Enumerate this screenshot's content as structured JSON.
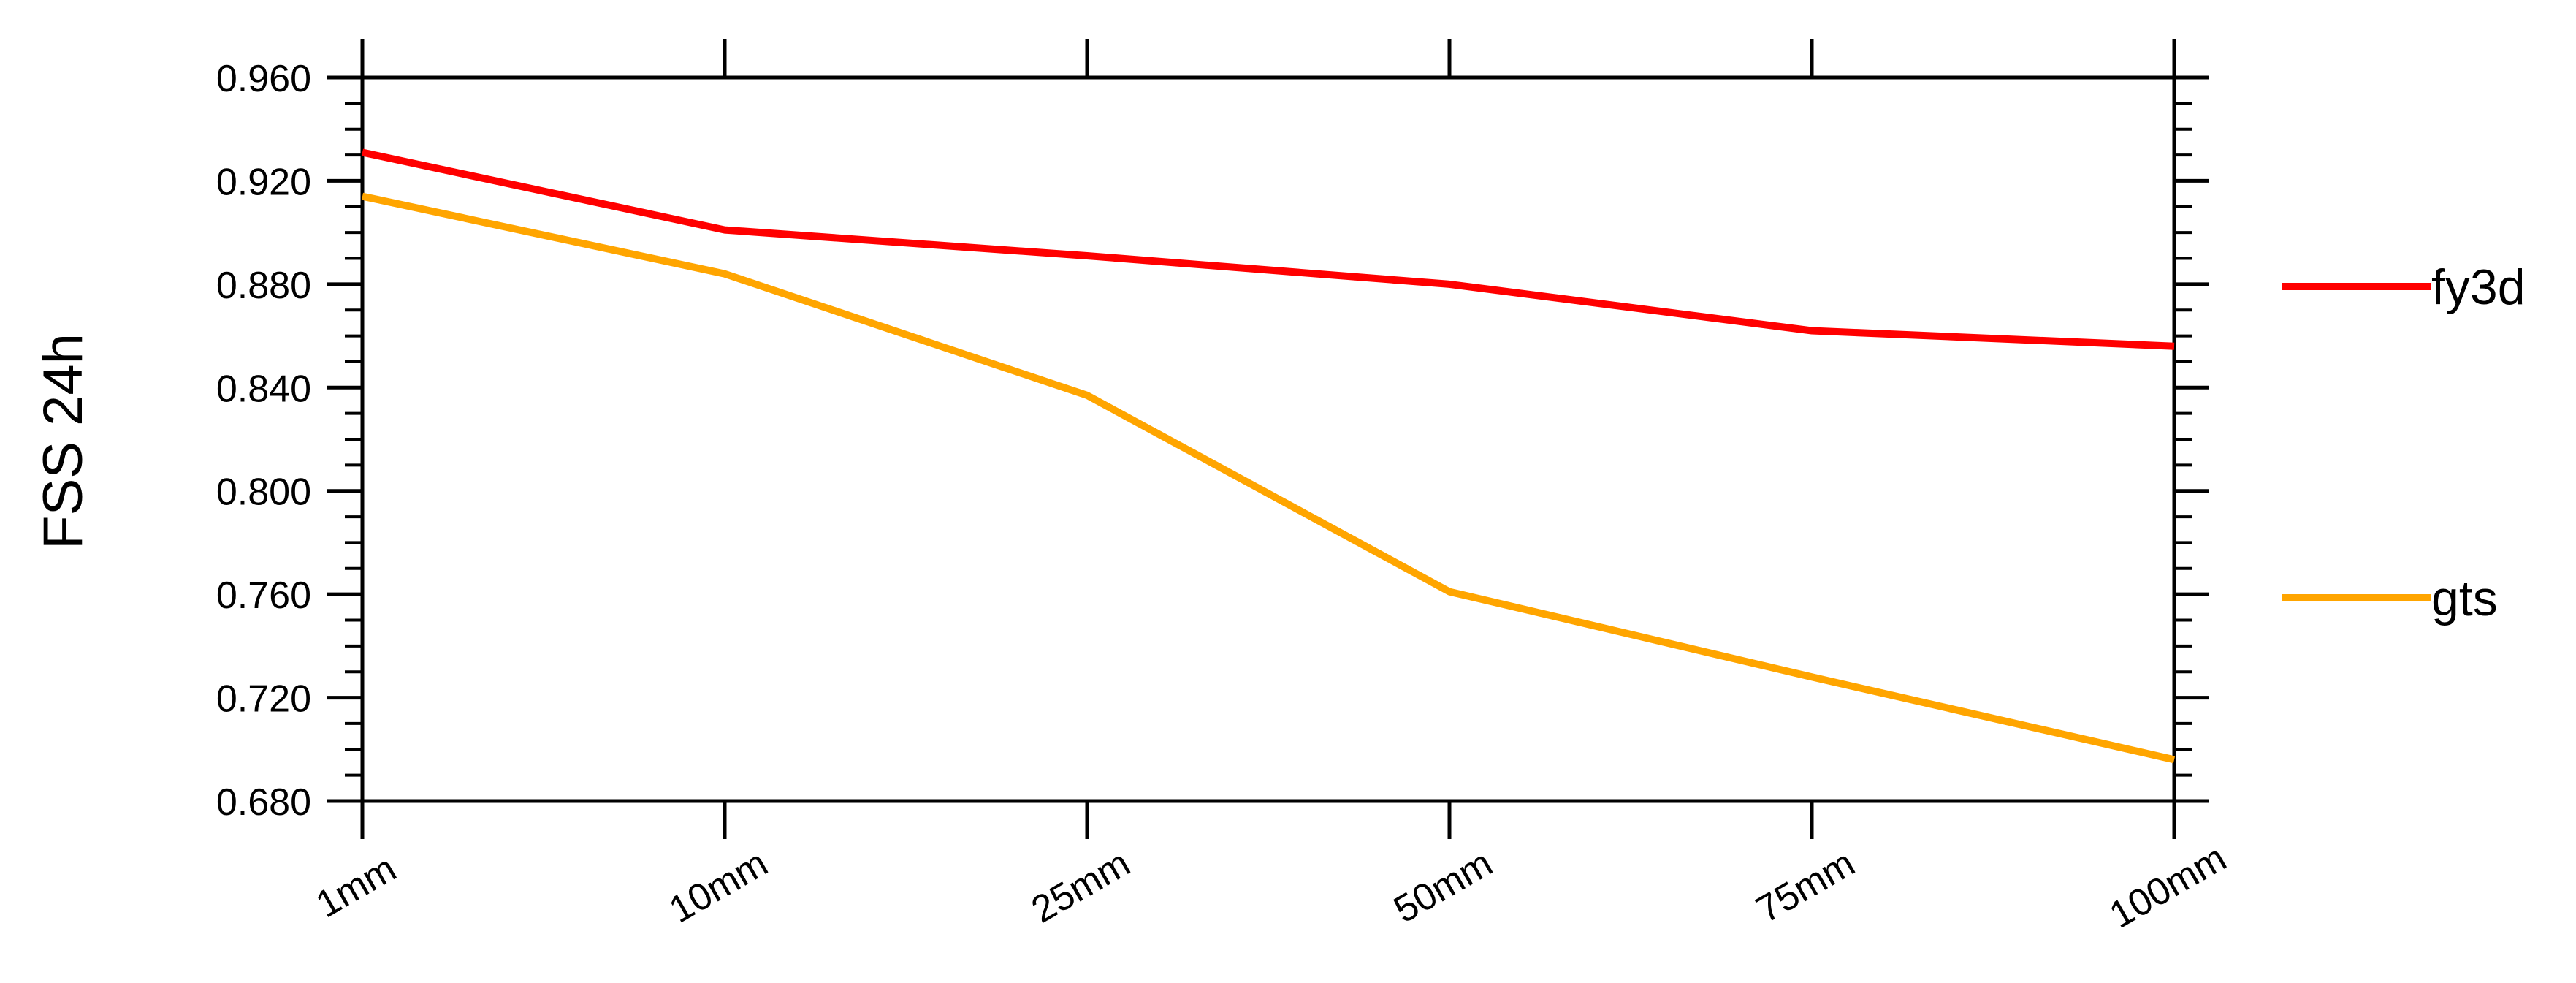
{
  "chart_data": {
    "type": "line",
    "ylabel": "FSS   24h",
    "categories": [
      "1mm",
      "10mm",
      "25mm",
      "50mm",
      "75mm",
      "100mm"
    ],
    "ylim": [
      0.68,
      0.96
    ],
    "yticks": [
      "0.680",
      "0.720",
      "0.760",
      "0.800",
      "0.840",
      "0.880",
      "0.920",
      "0.960"
    ],
    "grid": false,
    "legend_position": "right",
    "series": [
      {
        "name": "fy3d",
        "color": "#ff0000",
        "values": [
          0.931,
          0.901,
          0.891,
          0.88,
          0.862,
          0.856
        ]
      },
      {
        "name": "gts",
        "color": "#ffa500",
        "values": [
          0.914,
          0.884,
          0.837,
          0.761,
          0.728,
          0.696
        ]
      }
    ]
  }
}
